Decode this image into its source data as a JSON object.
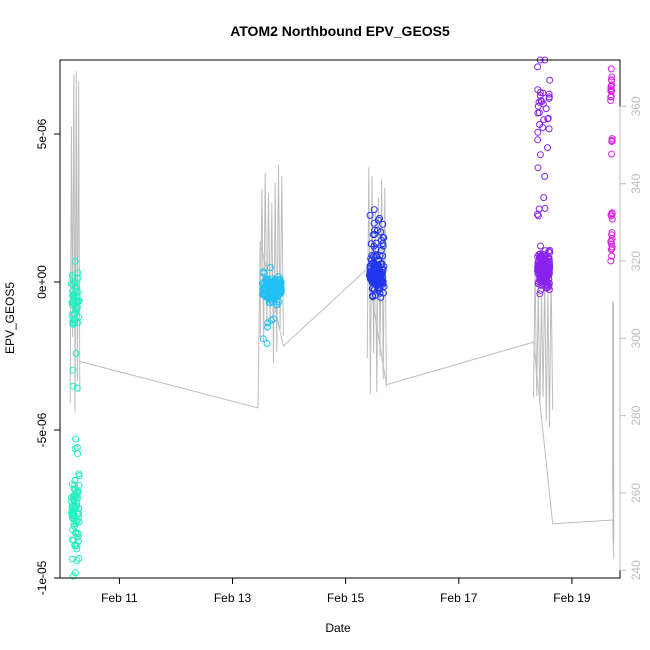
{
  "chart_data": {
    "type": "scatter",
    "title": "ATOM2 Northbound EPV_GEOS5",
    "xlabel": "Date",
    "ylabel": "EPV_GEOS5",
    "x_unit": "days in February (date axis)",
    "x_ticks": [
      {
        "value": 11,
        "label": "Feb 11"
      },
      {
        "value": 13,
        "label": "Feb 13"
      },
      {
        "value": 15,
        "label": "Feb 15"
      },
      {
        "value": 17,
        "label": "Feb 17"
      },
      {
        "value": 19,
        "label": "Feb 19"
      }
    ],
    "xlim": [
      9.95,
      19.85
    ],
    "ylim_left": [
      -1e-05,
      7.5e-06
    ],
    "y_ticks_left": [
      {
        "value": -1e-05,
        "label": "-1e-05"
      },
      {
        "value": -5e-06,
        "label": "-5e-06"
      },
      {
        "value": 0,
        "label": "0e+00"
      },
      {
        "value": 5e-06,
        "label": "5e-06"
      }
    ],
    "ylim_right": [
      238,
      372
    ],
    "y_ticks_right": [
      240,
      260,
      280,
      300,
      320,
      340,
      360
    ],
    "grid": false,
    "legend": "none",
    "colors": {
      "flight1": "#22f0c0",
      "flight2": "#22c0f2",
      "flight3": "#2236ee",
      "flight4": "#8a22ee",
      "flight5": "#dd22ee",
      "line": "#bdbdbd",
      "right_axis": "#bdbdbd"
    },
    "scatter_series": [
      {
        "color_key": "flight1",
        "x_center": 10.22,
        "x_spread": 0.07,
        "clusters": [
          {
            "y_mean": -6e-07,
            "y_sd": 5e-07,
            "n": 45
          },
          {
            "y_mean": -7.7e-06,
            "y_sd": 8.5e-07,
            "n": 75
          },
          {
            "y_mean": -2.6e-06,
            "y_sd": 6e-07,
            "n": 5
          }
        ]
      },
      {
        "color_key": "flight2",
        "x_center": 13.7,
        "x_spread": 0.17,
        "clusters": [
          {
            "y_mean": -2.5e-07,
            "y_sd": 2.2e-07,
            "n": 160
          },
          {
            "y_mean": -1.5e-06,
            "y_sd": 6e-07,
            "n": 6
          }
        ]
      },
      {
        "color_key": "flight3",
        "x_center": 15.55,
        "x_spread": 0.13,
        "clusters": [
          {
            "y_mean": 1.5e-07,
            "y_sd": 2.5e-07,
            "n": 140
          },
          {
            "y_mean": 1.2e-06,
            "y_sd": 5.5e-07,
            "n": 30
          }
        ]
      },
      {
        "color_key": "flight4",
        "x_center": 18.5,
        "x_spread": 0.11,
        "clusters": [
          {
            "y_mean": 4e-07,
            "y_sd": 3e-07,
            "n": 160
          },
          {
            "y_mean": 5.5e-06,
            "y_sd": 1.2e-06,
            "n": 30
          },
          {
            "y_mean": 2.5e-06,
            "y_sd": 5e-07,
            "n": 6
          }
        ]
      },
      {
        "color_key": "flight5",
        "x_center": 19.7,
        "x_spread": 0.015,
        "clusters": [
          {
            "y_mean": 6.5e-06,
            "y_sd": 2.5e-07,
            "n": 14
          },
          {
            "y_mean": 1.5e-06,
            "y_sd": 4.5e-07,
            "n": 16
          },
          {
            "y_mean": 4.4e-06,
            "y_sd": 5e-07,
            "n": 5
          }
        ]
      }
    ],
    "line_series": {
      "name": "",
      "axis": "right",
      "bursts": [
        {
          "x_start": 10.13,
          "x_end": 10.3,
          "low": 280,
          "high": 370
        },
        {
          "x_start": 13.49,
          "x_end": 13.9,
          "low": 290,
          "high": 345
        },
        {
          "x_start": 15.38,
          "x_end": 15.72,
          "low": 285,
          "high": 345
        },
        {
          "x_start": 18.32,
          "x_end": 18.66,
          "low": 275,
          "high": 318
        },
        {
          "x_start": 19.72,
          "x_end": 19.74,
          "low": 245,
          "high": 310
        }
      ],
      "connectors": [
        [
          10.3,
          294
        ],
        [
          13.45,
          282
        ],
        [
          13.49,
          325
        ],
        [
          13.9,
          298
        ],
        [
          15.38,
          318
        ],
        [
          15.72,
          288
        ],
        [
          18.32,
          299
        ],
        [
          18.66,
          252
        ],
        [
          19.72,
          253
        ],
        [
          19.74,
          243
        ]
      ]
    }
  }
}
